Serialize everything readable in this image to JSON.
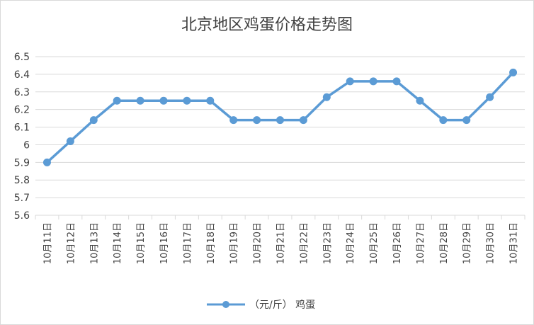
{
  "chart_data": {
    "type": "line",
    "title": "北京地区鸡蛋价格走势图",
    "xlabel": "",
    "ylabel": "",
    "categories": [
      "10月11日",
      "10月12日",
      "10月13日",
      "10月14日",
      "10月15日",
      "10月16日",
      "10月17日",
      "10月18日",
      "10月19日",
      "10月20日",
      "10月21日",
      "10月22日",
      "10月23日",
      "10月24日",
      "10月25日",
      "10月26日",
      "10月27日",
      "10月28日",
      "10月29日",
      "10月30日",
      "10月31日"
    ],
    "series": [
      {
        "name": "（元/斤） 鸡蛋",
        "values": [
          5.9,
          6.02,
          6.14,
          6.25,
          6.25,
          6.25,
          6.25,
          6.25,
          6.14,
          6.14,
          6.14,
          6.14,
          6.27,
          6.36,
          6.36,
          6.36,
          6.25,
          6.14,
          6.14,
          6.27,
          6.41
        ],
        "color": "#5b9bd5"
      }
    ],
    "ylim": [
      5.6,
      6.5
    ],
    "yticks": [
      "5.6",
      "5.7",
      "5.8",
      "5.9",
      "6",
      "6.1",
      "6.2",
      "6.3",
      "6.4",
      "6.5"
    ],
    "grid": true,
    "legend": "bottom-center"
  },
  "colors": {
    "line": "#5b9bd5",
    "grid": "#d9d9d9",
    "text": "#404040"
  }
}
